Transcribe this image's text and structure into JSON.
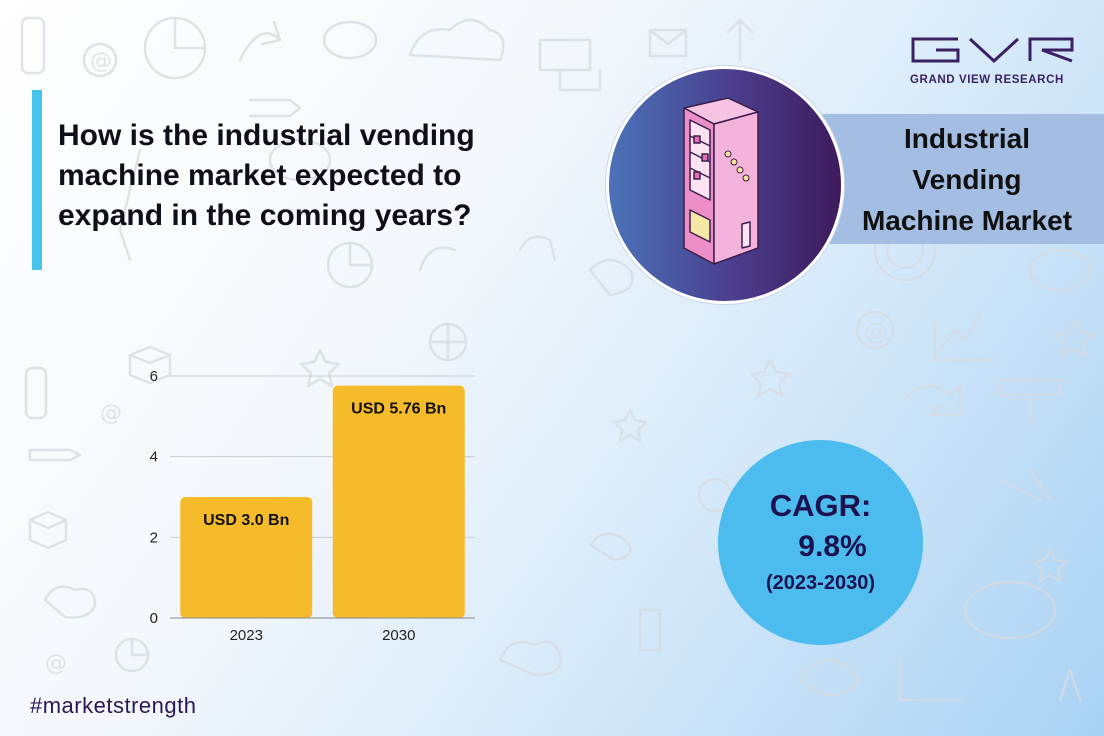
{
  "question": "How is the industrial vending machine market expected to expand in the coming years?",
  "brand": {
    "name": "GRAND VIEW RESEARCH"
  },
  "market_title": [
    "Industrial",
    "Vending",
    "Machine Market"
  ],
  "cagr": {
    "label": "CAGR:",
    "value": "9.8%",
    "period": "(2023-2030)"
  },
  "hashtag": "#marketstrength",
  "colors": {
    "accent": "#46c4ec",
    "bar": "#f5bb2b",
    "cagr_circle": "#4cbcee",
    "title_band": "#a3bde3",
    "brand": "#3a2163"
  },
  "icons": [
    "vending-machine-icon",
    "brand-logo-icon"
  ],
  "chart_data": {
    "type": "bar",
    "categories": [
      "2023",
      "2030"
    ],
    "values": [
      3.0,
      5.76
    ],
    "data_labels": [
      "USD 3.0 Bn",
      "USD 5.76 Bn"
    ],
    "yticks": [
      "0",
      "2",
      "4",
      "6"
    ],
    "ylim": [
      0,
      6
    ],
    "grid": true,
    "legend": "none",
    "title": "",
    "xlabel": "",
    "ylabel": ""
  }
}
